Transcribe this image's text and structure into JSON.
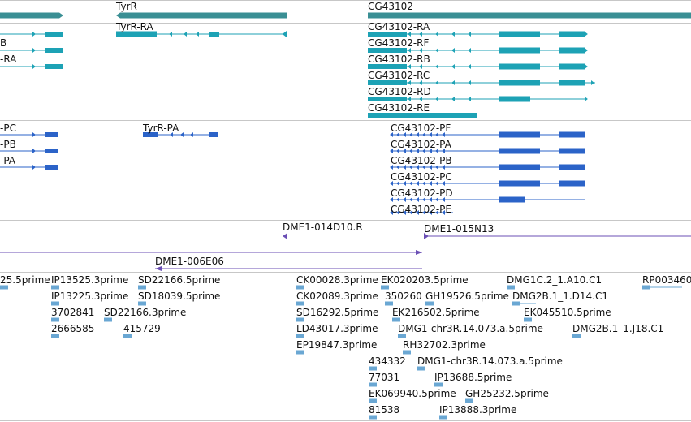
{
  "colors": {
    "gene": "#3a8f94",
    "transcript": "#1da2b5",
    "protein": "#2b63c8",
    "clone": "#6b4fb5",
    "est": "#6aa7d3",
    "divider": "#c7c7c7"
  },
  "tracks": {
    "genes": {
      "labels": [
        "TyrR",
        "CG43102"
      ]
    },
    "transcripts": {
      "labels": [
        "B",
        "-RA",
        "TyrR-RA",
        "CG43102-RA",
        "CG43102-RF",
        "CG43102-RB",
        "CG43102-RC",
        "CG43102-RD",
        "CG43102-RE"
      ]
    },
    "proteins": {
      "labels": [
        "-PC",
        "-PB",
        "-PA",
        "TyrR-PA",
        "CG43102-PF",
        "CG43102-PA",
        "CG43102-PB",
        "CG43102-PC",
        "CG43102-PD",
        "CG43102-PE"
      ]
    },
    "clones": {
      "labels": [
        "DME1-014D10.R",
        "DME1-015N13",
        "DME1-006E06"
      ]
    },
    "ests": {
      "labels": [
        "25.5prime",
        "IP13525.3prime",
        "SD22166.5prime",
        "IP13225.3prime",
        "SD18039.5prime",
        "3702841",
        "SD22166.3prime",
        "2666585",
        "415729",
        "CK00028.3prime",
        "CK02089.3prime",
        "SD16292.5prime",
        "LD43017.3prime",
        "EP19847.3prime",
        "EK020203.5prime",
        "350260",
        "GH19526.5prime",
        "EK216502.5prime",
        "DMG1-chr3R.14.073.a.5prime",
        "RH32702.3prime",
        "DMG1C.2_1.A10.C1",
        "DMG2B.1_1.D14.C1",
        "EK045510.5prime",
        "DMG2B.1_1.J18.C1",
        "RP003460",
        "434332",
        "DMG1-chr3R.14.073.a.5prime",
        "77031",
        "IP13688.5prime",
        "EK069940.5prime",
        "GH25232.5prime",
        "81538",
        "IP13888.3prime"
      ]
    }
  }
}
